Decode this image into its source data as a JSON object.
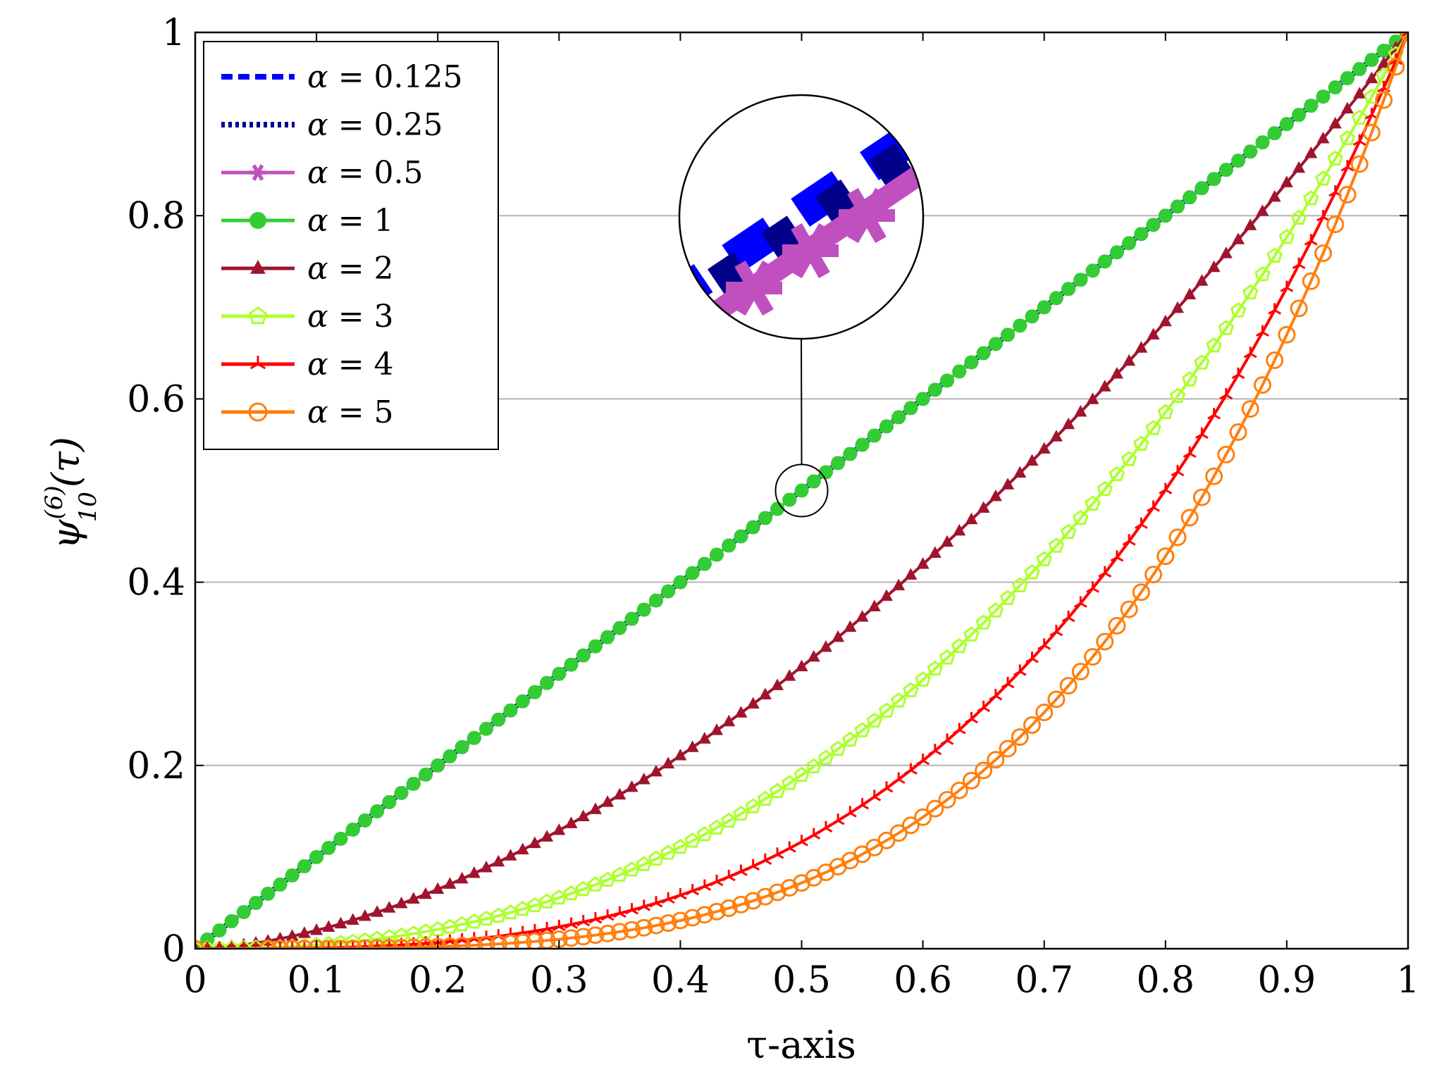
{
  "chart_data": {
    "type": "line",
    "title": "",
    "xlabel": "τ-axis",
    "ylabel_main": "ψ",
    "ylabel_sup": "(6)",
    "ylabel_sub": "10",
    "ylabel_arg": "(τ)",
    "xlim": [
      0,
      1
    ],
    "ylim": [
      0,
      1
    ],
    "xticks": [
      0,
      0.1,
      0.2,
      0.3,
      0.4,
      0.5,
      0.6,
      0.7,
      0.8,
      0.9,
      1
    ],
    "xtick_labels": [
      "0",
      "0.1",
      "0.2",
      "0.3",
      "0.4",
      "0.5",
      "0.6",
      "0.7",
      "0.8",
      "0.9",
      "1"
    ],
    "yticks": [
      0,
      0.2,
      0.4,
      0.6,
      0.8,
      1
    ],
    "ytick_labels": [
      "0",
      "0.2",
      "0.4",
      "0.6",
      "0.8",
      "1"
    ],
    "grid": "horizontal",
    "legend_position": "top-left",
    "zoom_inset": {
      "center": [
        0.5,
        0.5
      ],
      "description": "magnified view"
    },
    "series": [
      {
        "name": "α = 0.125",
        "alpha": 0.125,
        "color": "#0000ff",
        "style": "dashed",
        "marker": "none"
      },
      {
        "name": "α = 0.25",
        "alpha": 0.25,
        "color": "#00008b",
        "style": "dotted",
        "marker": "none"
      },
      {
        "name": "α = 0.5",
        "alpha": 0.5,
        "color": "#c050c0",
        "style": "solid",
        "marker": "asterisk"
      },
      {
        "name": "α = 1",
        "alpha": 1,
        "color": "#32cd32",
        "style": "solid",
        "marker": "heart"
      },
      {
        "name": "α = 2",
        "alpha": 2,
        "color": "#a0142e",
        "style": "solid",
        "marker": "triangle"
      },
      {
        "name": "α = 3",
        "alpha": 3,
        "color": "#adff2f",
        "style": "solid",
        "marker": "pentagon"
      },
      {
        "name": "α = 4",
        "alpha": 4,
        "color": "#ff0000",
        "style": "solid",
        "marker": "tristar"
      },
      {
        "name": "α = 5",
        "alpha": 5,
        "color": "#ff7f0e",
        "style": "solid",
        "marker": "circle"
      }
    ],
    "legend_prefix": "α",
    "legend_values": [
      "0.125",
      "0.25",
      "0.5",
      "1",
      "2",
      "3",
      "4",
      "5"
    ]
  }
}
